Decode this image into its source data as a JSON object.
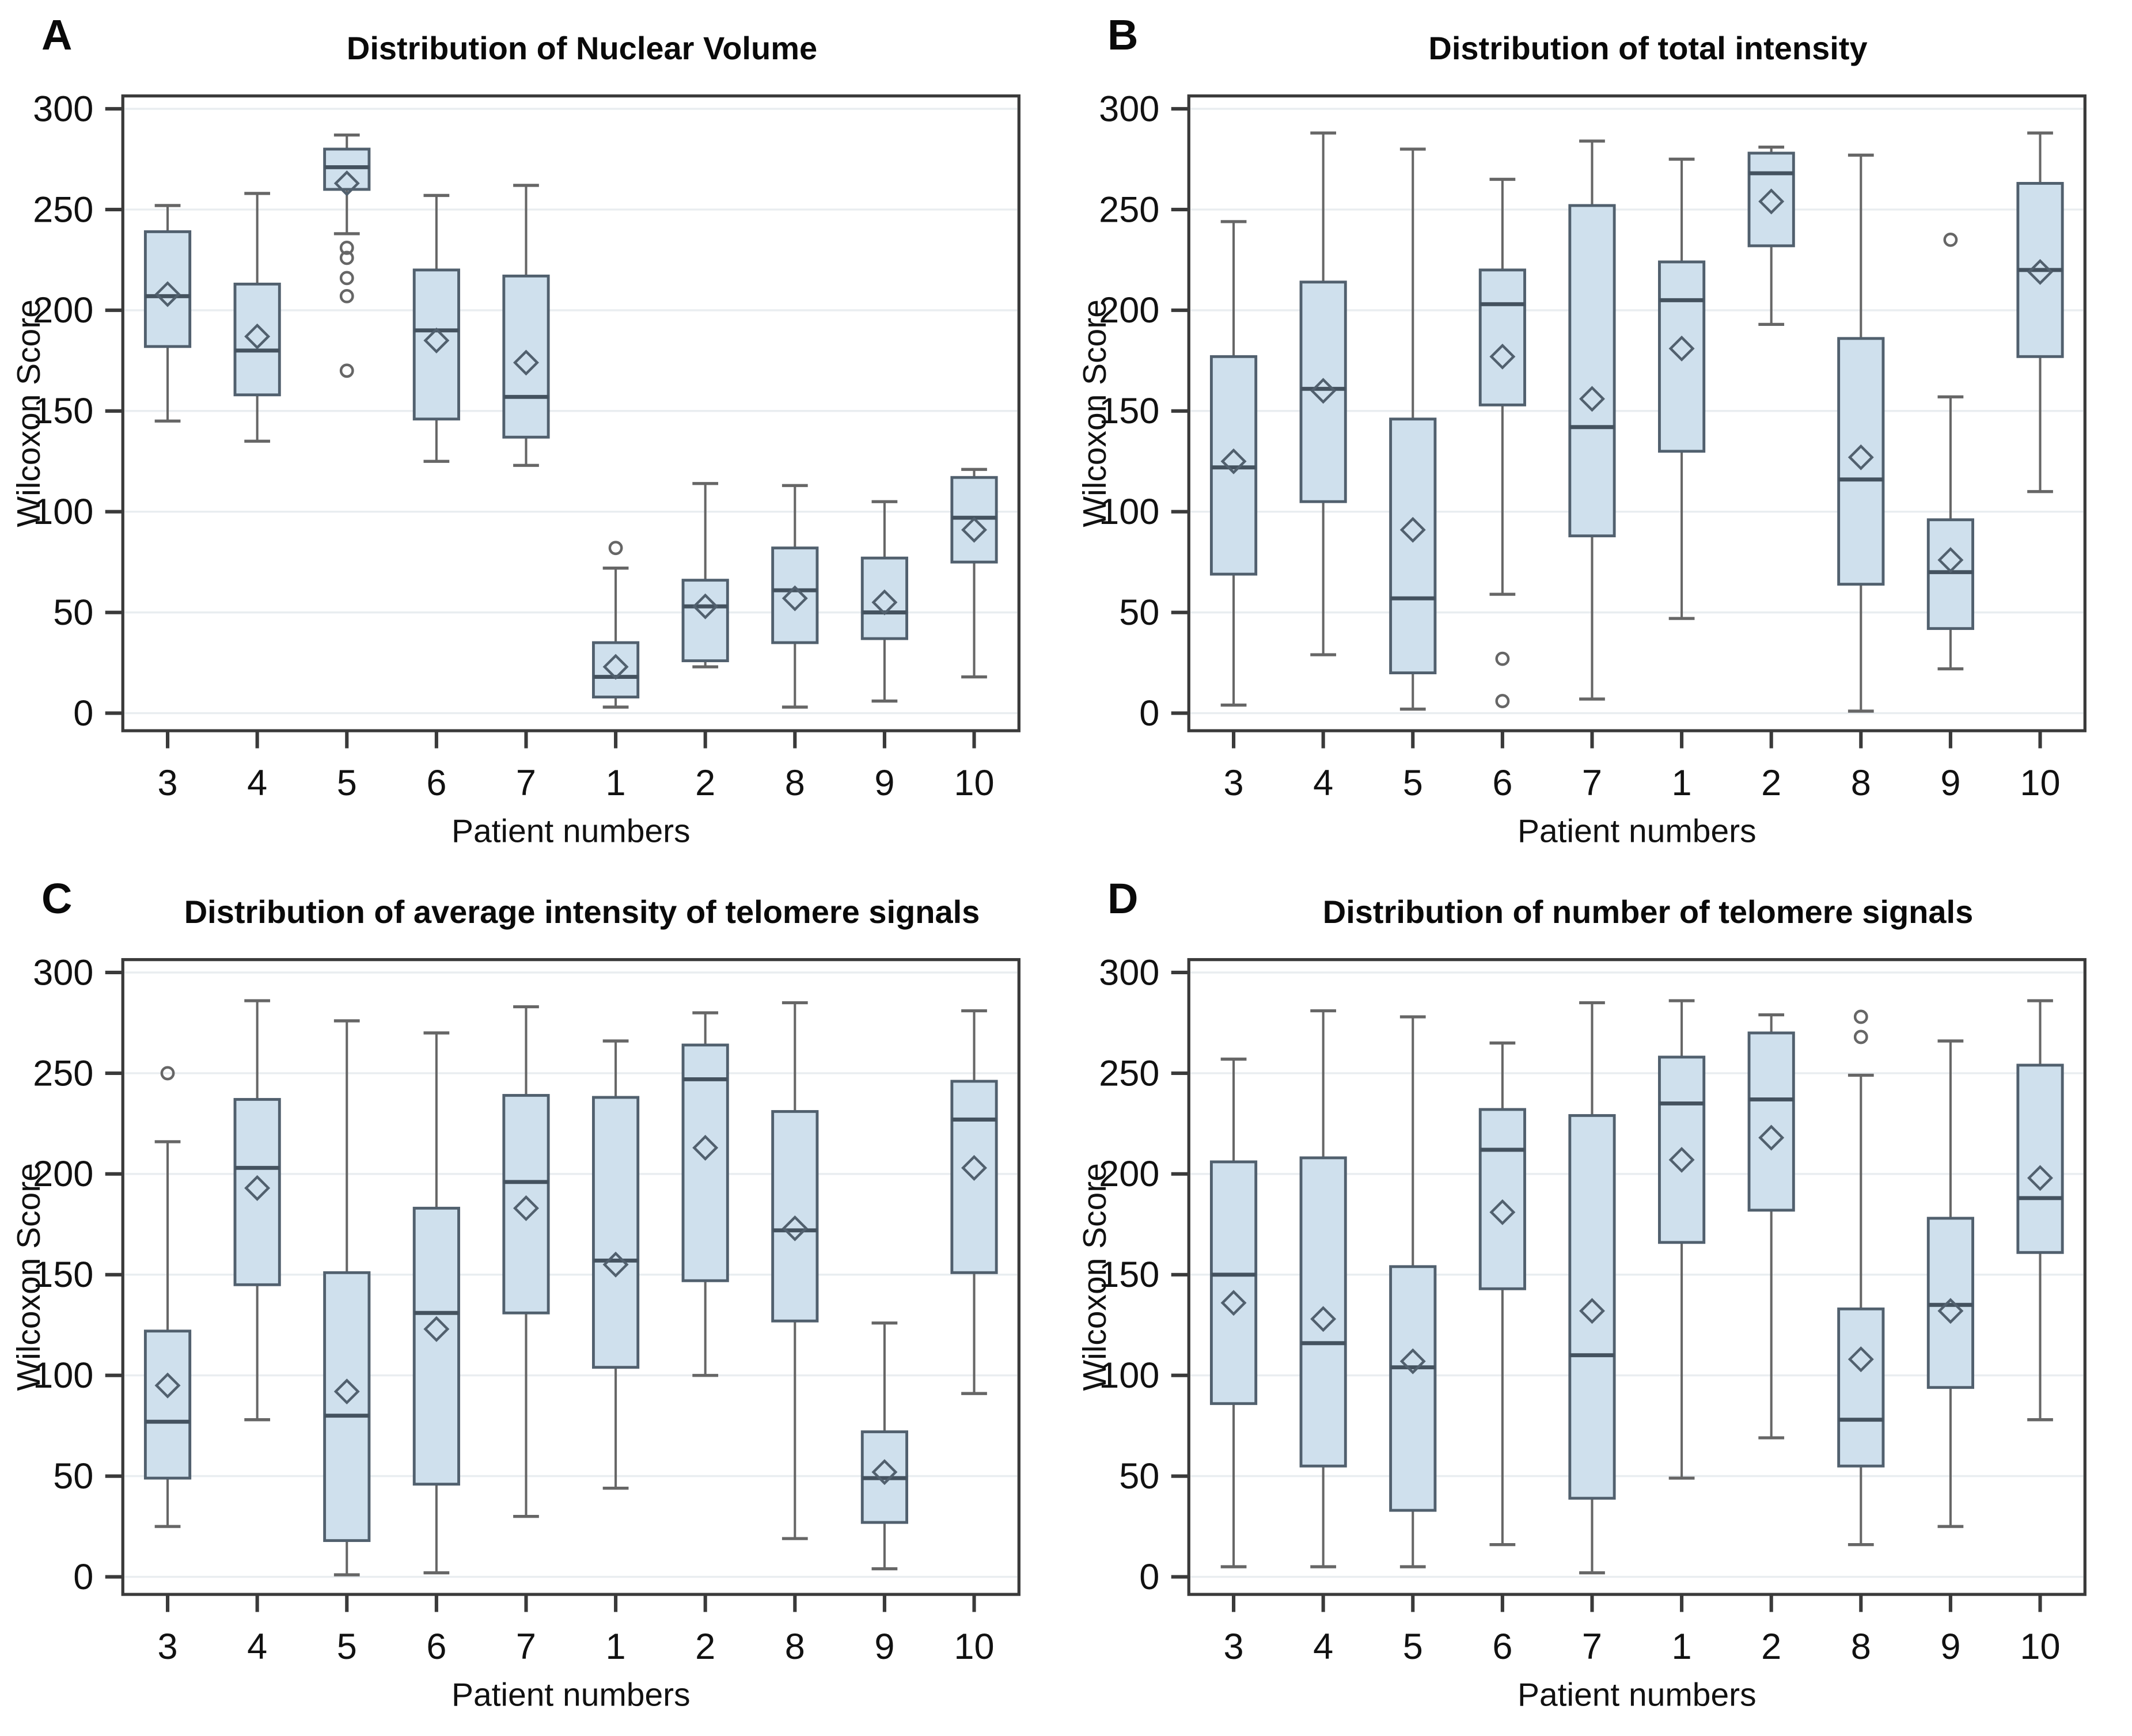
{
  "page": {
    "background": "#ffffff"
  },
  "style": {
    "box_fill": "#cfe0ed",
    "box_stroke": "#51606e",
    "median_color": "#44525f",
    "whisker_color": "#666666",
    "grid_color": "#e9edf0",
    "frame_color": "#3a3a3a",
    "tick_text_color": "#111111",
    "mean_marker": "diamond-outline",
    "outlier_marker": "circle-outline"
  },
  "chart_data": [
    {
      "type": "boxplot",
      "panel_label": "A",
      "title": "Distribution of Nuclear Volume",
      "xlabel": "Patient numbers",
      "ylabel": "Wilcoxon Score",
      "categories": [
        "3",
        "4",
        "5",
        "6",
        "7",
        "1",
        "2",
        "8",
        "9",
        "10"
      ],
      "ylim": [
        0,
        300
      ],
      "yticks": [
        0,
        50,
        100,
        150,
        200,
        250,
        300
      ],
      "grid": true,
      "legend": "none",
      "boxes": [
        {
          "patient": "3",
          "low": 145,
          "q1": 182,
          "median": 207,
          "q3": 239,
          "high": 252,
          "mean": 208,
          "outliers": []
        },
        {
          "patient": "4",
          "low": 135,
          "q1": 158,
          "median": 180,
          "q3": 213,
          "high": 258,
          "mean": 187,
          "outliers": []
        },
        {
          "patient": "5",
          "low": 238,
          "q1": 260,
          "median": 271,
          "q3": 280,
          "high": 287,
          "mean": 263,
          "outliers": [
            231,
            226,
            216,
            207,
            170
          ]
        },
        {
          "patient": "6",
          "low": 125,
          "q1": 146,
          "median": 190,
          "q3": 220,
          "high": 257,
          "mean": 185,
          "outliers": []
        },
        {
          "patient": "7",
          "low": 123,
          "q1": 137,
          "median": 157,
          "q3": 217,
          "high": 262,
          "mean": 174,
          "outliers": []
        },
        {
          "patient": "1",
          "low": 3,
          "q1": 8,
          "median": 18,
          "q3": 35,
          "high": 72,
          "mean": 23,
          "outliers": [
            82
          ]
        },
        {
          "patient": "2",
          "low": 23,
          "q1": 26,
          "median": 53,
          "q3": 66,
          "high": 114,
          "mean": 53,
          "outliers": []
        },
        {
          "patient": "8",
          "low": 3,
          "q1": 35,
          "median": 61,
          "q3": 82,
          "high": 113,
          "mean": 57,
          "outliers": []
        },
        {
          "patient": "9",
          "low": 6,
          "q1": 37,
          "median": 50,
          "q3": 77,
          "high": 105,
          "mean": 55,
          "outliers": []
        },
        {
          "patient": "10",
          "low": 18,
          "q1": 75,
          "median": 97,
          "q3": 117,
          "high": 121,
          "mean": 91,
          "outliers": []
        }
      ]
    },
    {
      "type": "boxplot",
      "panel_label": "B",
      "title": "Distribution of total intensity",
      "xlabel": "Patient numbers",
      "ylabel": "Wilcoxon Score",
      "categories": [
        "3",
        "4",
        "5",
        "6",
        "7",
        "1",
        "2",
        "8",
        "9",
        "10"
      ],
      "ylim": [
        0,
        300
      ],
      "yticks": [
        0,
        50,
        100,
        150,
        200,
        250,
        300
      ],
      "grid": true,
      "legend": "none",
      "boxes": [
        {
          "patient": "3",
          "low": 4,
          "q1": 69,
          "median": 122,
          "q3": 177,
          "high": 244,
          "mean": 125,
          "outliers": []
        },
        {
          "patient": "4",
          "low": 29,
          "q1": 105,
          "median": 161,
          "q3": 214,
          "high": 288,
          "mean": 160,
          "outliers": []
        },
        {
          "patient": "5",
          "low": 2,
          "q1": 20,
          "median": 57,
          "q3": 146,
          "high": 280,
          "mean": 91,
          "outliers": []
        },
        {
          "patient": "6",
          "low": 59,
          "q1": 153,
          "median": 203,
          "q3": 220,
          "high": 265,
          "mean": 177,
          "outliers": [
            27,
            6
          ]
        },
        {
          "patient": "7",
          "low": 7,
          "q1": 88,
          "median": 142,
          "q3": 252,
          "high": 284,
          "mean": 156,
          "outliers": []
        },
        {
          "patient": "1",
          "low": 47,
          "q1": 130,
          "median": 205,
          "q3": 224,
          "high": 275,
          "mean": 181,
          "outliers": []
        },
        {
          "patient": "2",
          "low": 193,
          "q1": 232,
          "median": 268,
          "q3": 278,
          "high": 281,
          "mean": 254,
          "outliers": []
        },
        {
          "patient": "8",
          "low": 1,
          "q1": 64,
          "median": 116,
          "q3": 186,
          "high": 277,
          "mean": 127,
          "outliers": []
        },
        {
          "patient": "9",
          "low": 22,
          "q1": 42,
          "median": 70,
          "q3": 96,
          "high": 157,
          "mean": 76,
          "outliers": [
            235
          ]
        },
        {
          "patient": "10",
          "low": 110,
          "q1": 177,
          "median": 220,
          "q3": 263,
          "high": 288,
          "mean": 219,
          "outliers": []
        }
      ]
    },
    {
      "type": "boxplot",
      "panel_label": "C",
      "title": "Distribution of average intensity of telomere signals",
      "xlabel": "Patient numbers",
      "ylabel": "Wilcoxon Score",
      "categories": [
        "3",
        "4",
        "5",
        "6",
        "7",
        "1",
        "2",
        "8",
        "9",
        "10"
      ],
      "ylim": [
        0,
        300
      ],
      "yticks": [
        0,
        50,
        100,
        150,
        200,
        250,
        300
      ],
      "grid": true,
      "legend": "none",
      "boxes": [
        {
          "patient": "3",
          "low": 25,
          "q1": 49,
          "median": 77,
          "q3": 122,
          "high": 216,
          "mean": 95,
          "outliers": [
            250
          ]
        },
        {
          "patient": "4",
          "low": 78,
          "q1": 145,
          "median": 203,
          "q3": 237,
          "high": 286,
          "mean": 193,
          "outliers": []
        },
        {
          "patient": "5",
          "low": 1,
          "q1": 18,
          "median": 80,
          "q3": 151,
          "high": 276,
          "mean": 92,
          "outliers": []
        },
        {
          "patient": "6",
          "low": 2,
          "q1": 46,
          "median": 131,
          "q3": 183,
          "high": 270,
          "mean": 123,
          "outliers": []
        },
        {
          "patient": "7",
          "low": 30,
          "q1": 131,
          "median": 196,
          "q3": 239,
          "high": 283,
          "mean": 183,
          "outliers": []
        },
        {
          "patient": "1",
          "low": 44,
          "q1": 104,
          "median": 157,
          "q3": 238,
          "high": 266,
          "mean": 155,
          "outliers": []
        },
        {
          "patient": "2",
          "low": 100,
          "q1": 147,
          "median": 247,
          "q3": 264,
          "high": 280,
          "mean": 213,
          "outliers": []
        },
        {
          "patient": "8",
          "low": 19,
          "q1": 127,
          "median": 172,
          "q3": 231,
          "high": 285,
          "mean": 173,
          "outliers": []
        },
        {
          "patient": "9",
          "low": 4,
          "q1": 27,
          "median": 49,
          "q3": 72,
          "high": 126,
          "mean": 52,
          "outliers": []
        },
        {
          "patient": "10",
          "low": 91,
          "q1": 151,
          "median": 227,
          "q3": 246,
          "high": 281,
          "mean": 203,
          "outliers": []
        }
      ]
    },
    {
      "type": "boxplot",
      "panel_label": "D",
      "title": "Distribution of number of telomere signals",
      "xlabel": "Patient numbers",
      "ylabel": "Wilcoxon Score",
      "categories": [
        "3",
        "4",
        "5",
        "6",
        "7",
        "1",
        "2",
        "8",
        "9",
        "10"
      ],
      "ylim": [
        0,
        300
      ],
      "yticks": [
        0,
        50,
        100,
        150,
        200,
        250,
        300
      ],
      "grid": true,
      "legend": "none",
      "boxes": [
        {
          "patient": "3",
          "low": 5,
          "q1": 86,
          "median": 150,
          "q3": 206,
          "high": 257,
          "mean": 136,
          "outliers": []
        },
        {
          "patient": "4",
          "low": 5,
          "q1": 55,
          "median": 116,
          "q3": 208,
          "high": 281,
          "mean": 128,
          "outliers": []
        },
        {
          "patient": "5",
          "low": 5,
          "q1": 33,
          "median": 104,
          "q3": 154,
          "high": 278,
          "mean": 107,
          "outliers": []
        },
        {
          "patient": "6",
          "low": 16,
          "q1": 143,
          "median": 212,
          "q3": 232,
          "high": 265,
          "mean": 181,
          "outliers": []
        },
        {
          "patient": "7",
          "low": 2,
          "q1": 39,
          "median": 110,
          "q3": 229,
          "high": 285,
          "mean": 132,
          "outliers": []
        },
        {
          "patient": "1",
          "low": 49,
          "q1": 166,
          "median": 235,
          "q3": 258,
          "high": 286,
          "mean": 207,
          "outliers": []
        },
        {
          "patient": "2",
          "low": 69,
          "q1": 182,
          "median": 237,
          "q3": 270,
          "high": 279,
          "mean": 218,
          "outliers": []
        },
        {
          "patient": "8",
          "low": 16,
          "q1": 55,
          "median": 78,
          "q3": 133,
          "high": 249,
          "mean": 108,
          "outliers": [
            278,
            268
          ]
        },
        {
          "patient": "9",
          "low": 25,
          "q1": 94,
          "median": 135,
          "q3": 178,
          "high": 266,
          "mean": 132,
          "outliers": []
        },
        {
          "patient": "10",
          "low": 78,
          "q1": 161,
          "median": 188,
          "q3": 254,
          "high": 286,
          "mean": 198,
          "outliers": []
        }
      ]
    }
  ]
}
